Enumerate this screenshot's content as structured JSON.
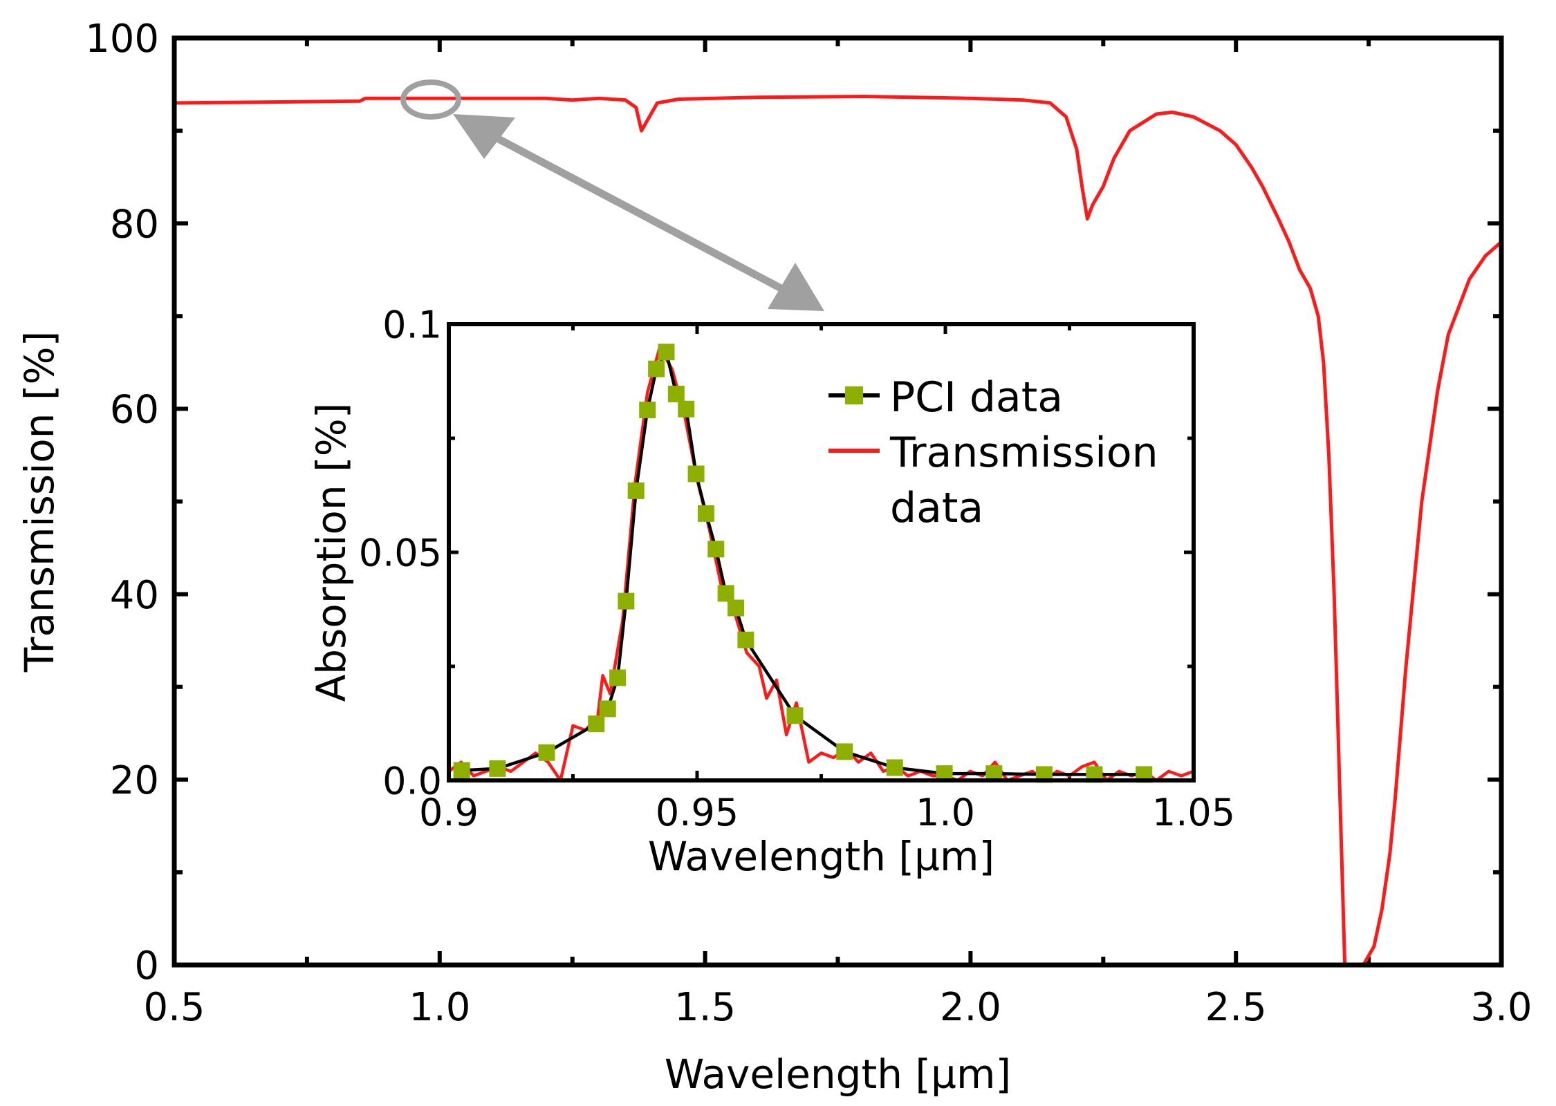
{
  "colors": {
    "transmission": "#ff1a1a",
    "pci_line": "#000000",
    "pci_marker": "#8db000",
    "annotation": "#a0a0a0"
  },
  "chart_data": [
    {
      "type": "line",
      "xlabel": "Wavelength [µm]",
      "ylabel": "Transmission [%]",
      "xlim": [
        0.5,
        3.0
      ],
      "ylim": [
        0,
        100
      ],
      "xticks": [
        "0.5",
        "1.0",
        "1.5",
        "2.0",
        "2.5",
        "3.0"
      ],
      "yticks": [
        "0",
        "20",
        "40",
        "60",
        "80",
        "100"
      ],
      "grid": false,
      "series": [
        {
          "x": [
            0.5,
            0.7,
            0.85,
            0.86,
            1.0,
            1.2,
            1.25,
            1.3,
            1.35,
            1.37,
            1.38,
            1.39,
            1.41,
            1.45,
            1.6,
            1.8,
            2.0,
            2.1,
            2.15,
            2.18,
            2.2,
            2.21,
            2.22,
            2.23,
            2.25,
            2.27,
            2.3,
            2.35,
            2.38,
            2.42,
            2.47,
            2.5,
            2.53,
            2.55,
            2.58,
            2.6,
            2.62,
            2.64,
            2.655,
            2.665,
            2.675,
            2.685,
            2.695,
            2.705,
            2.715,
            2.74,
            2.76,
            2.775,
            2.79,
            2.8,
            2.82,
            2.85,
            2.88,
            2.9,
            2.94,
            2.97,
            3.0
          ],
          "y": [
            93,
            93.1,
            93.2,
            93.5,
            93.5,
            93.5,
            93.3,
            93.5,
            93.3,
            92.5,
            90,
            91,
            93,
            93.4,
            93.6,
            93.7,
            93.5,
            93.3,
            93,
            91.5,
            88,
            84,
            80.5,
            82,
            84,
            87,
            90,
            91.8,
            92,
            91.5,
            90,
            88.5,
            86,
            84,
            80.5,
            78,
            75,
            73,
            70,
            65,
            55,
            40,
            20,
            0,
            0,
            0,
            2,
            6,
            12,
            18,
            32,
            50,
            62,
            68,
            74,
            76.5,
            78
          ]
        }
      ]
    },
    {
      "type": "line",
      "xlabel": "Wavelength [µm]",
      "ylabel": "Absorption [%]",
      "xlim": [
        0.9,
        1.05
      ],
      "ylim": [
        0,
        0.1
      ],
      "xticks": [
        "0.9",
        "0.95",
        "1.0",
        "1.05"
      ],
      "yticks": [
        "0.0",
        "0.05",
        "0.1"
      ],
      "legend": "top-right",
      "series": [
        {
          "name": "PCI data",
          "x": [
            0.9026,
            0.9098,
            0.9197,
            0.9297,
            0.932,
            0.934,
            0.9357,
            0.9377,
            0.94,
            0.9418,
            0.9438,
            0.9458,
            0.9478,
            0.9498,
            0.9518,
            0.9538,
            0.9558,
            0.9578,
            0.9598,
            0.9697,
            0.9797,
            0.9898,
            0.9998,
            1.0098,
            1.0199,
            1.03,
            1.04
          ],
          "y": [
            0.0022,
            0.0026,
            0.0061,
            0.0124,
            0.0157,
            0.0225,
            0.0393,
            0.0635,
            0.0812,
            0.0902,
            0.0939,
            0.0847,
            0.0814,
            0.0672,
            0.0585,
            0.0507,
            0.041,
            0.0378,
            0.0308,
            0.0142,
            0.0063,
            0.0028,
            0.0015,
            0.0015,
            0.0013,
            0.0013,
            0.0013
          ]
        },
        {
          "name": "Transmission data",
          "x": [
            0.9,
            0.9025,
            0.905,
            0.9075,
            0.91,
            0.9125,
            0.915,
            0.9175,
            0.92,
            0.9225,
            0.925,
            0.9275,
            0.93,
            0.931,
            0.9325,
            0.935,
            0.9375,
            0.94,
            0.9425,
            0.945,
            0.9475,
            0.95,
            0.9525,
            0.955,
            0.9575,
            0.96,
            0.9625,
            0.964,
            0.966,
            0.968,
            0.97,
            0.9725,
            0.975,
            0.9775,
            0.98,
            0.9825,
            0.985,
            0.9875,
            0.99,
            0.9925,
            0.995,
            0.9975,
            1.0,
            1.0025,
            1.005,
            1.0075,
            1.01,
            1.0125,
            1.015,
            1.0175,
            1.02,
            1.0225,
            1.025,
            1.0275,
            1.03,
            1.0325,
            1.035,
            1.0375,
            1.04,
            1.0425,
            1.045,
            1.0475,
            1.05
          ],
          "y": [
            0.002,
            0.004,
            0.001,
            0.002,
            0.003,
            0.002,
            0.004,
            0.006,
            0.004,
            0.0,
            0.012,
            0.011,
            0.014,
            0.023,
            0.019,
            0.035,
            0.065,
            0.085,
            0.095,
            0.09,
            0.08,
            0.066,
            0.055,
            0.042,
            0.037,
            0.028,
            0.025,
            0.018,
            0.022,
            0.01,
            0.017,
            0.004,
            0.006,
            0.005,
            0.007,
            0.004,
            0.006,
            0.002,
            0.003,
            0.001,
            0.002,
            0.001,
            0.001,
            0.0,
            0.002,
            0.001,
            0.004,
            0.0,
            0.001,
            0.002,
            0.0,
            0.002,
            0.001,
            0.003,
            0.004,
            0.0,
            0.002,
            0.001,
            0.002,
            0.0,
            0.002,
            0.001,
            0.002
          ]
        }
      ]
    }
  ],
  "legend": {
    "pci": "PCI data",
    "transmission_line1": "Transmission",
    "transmission_line2": "data"
  }
}
